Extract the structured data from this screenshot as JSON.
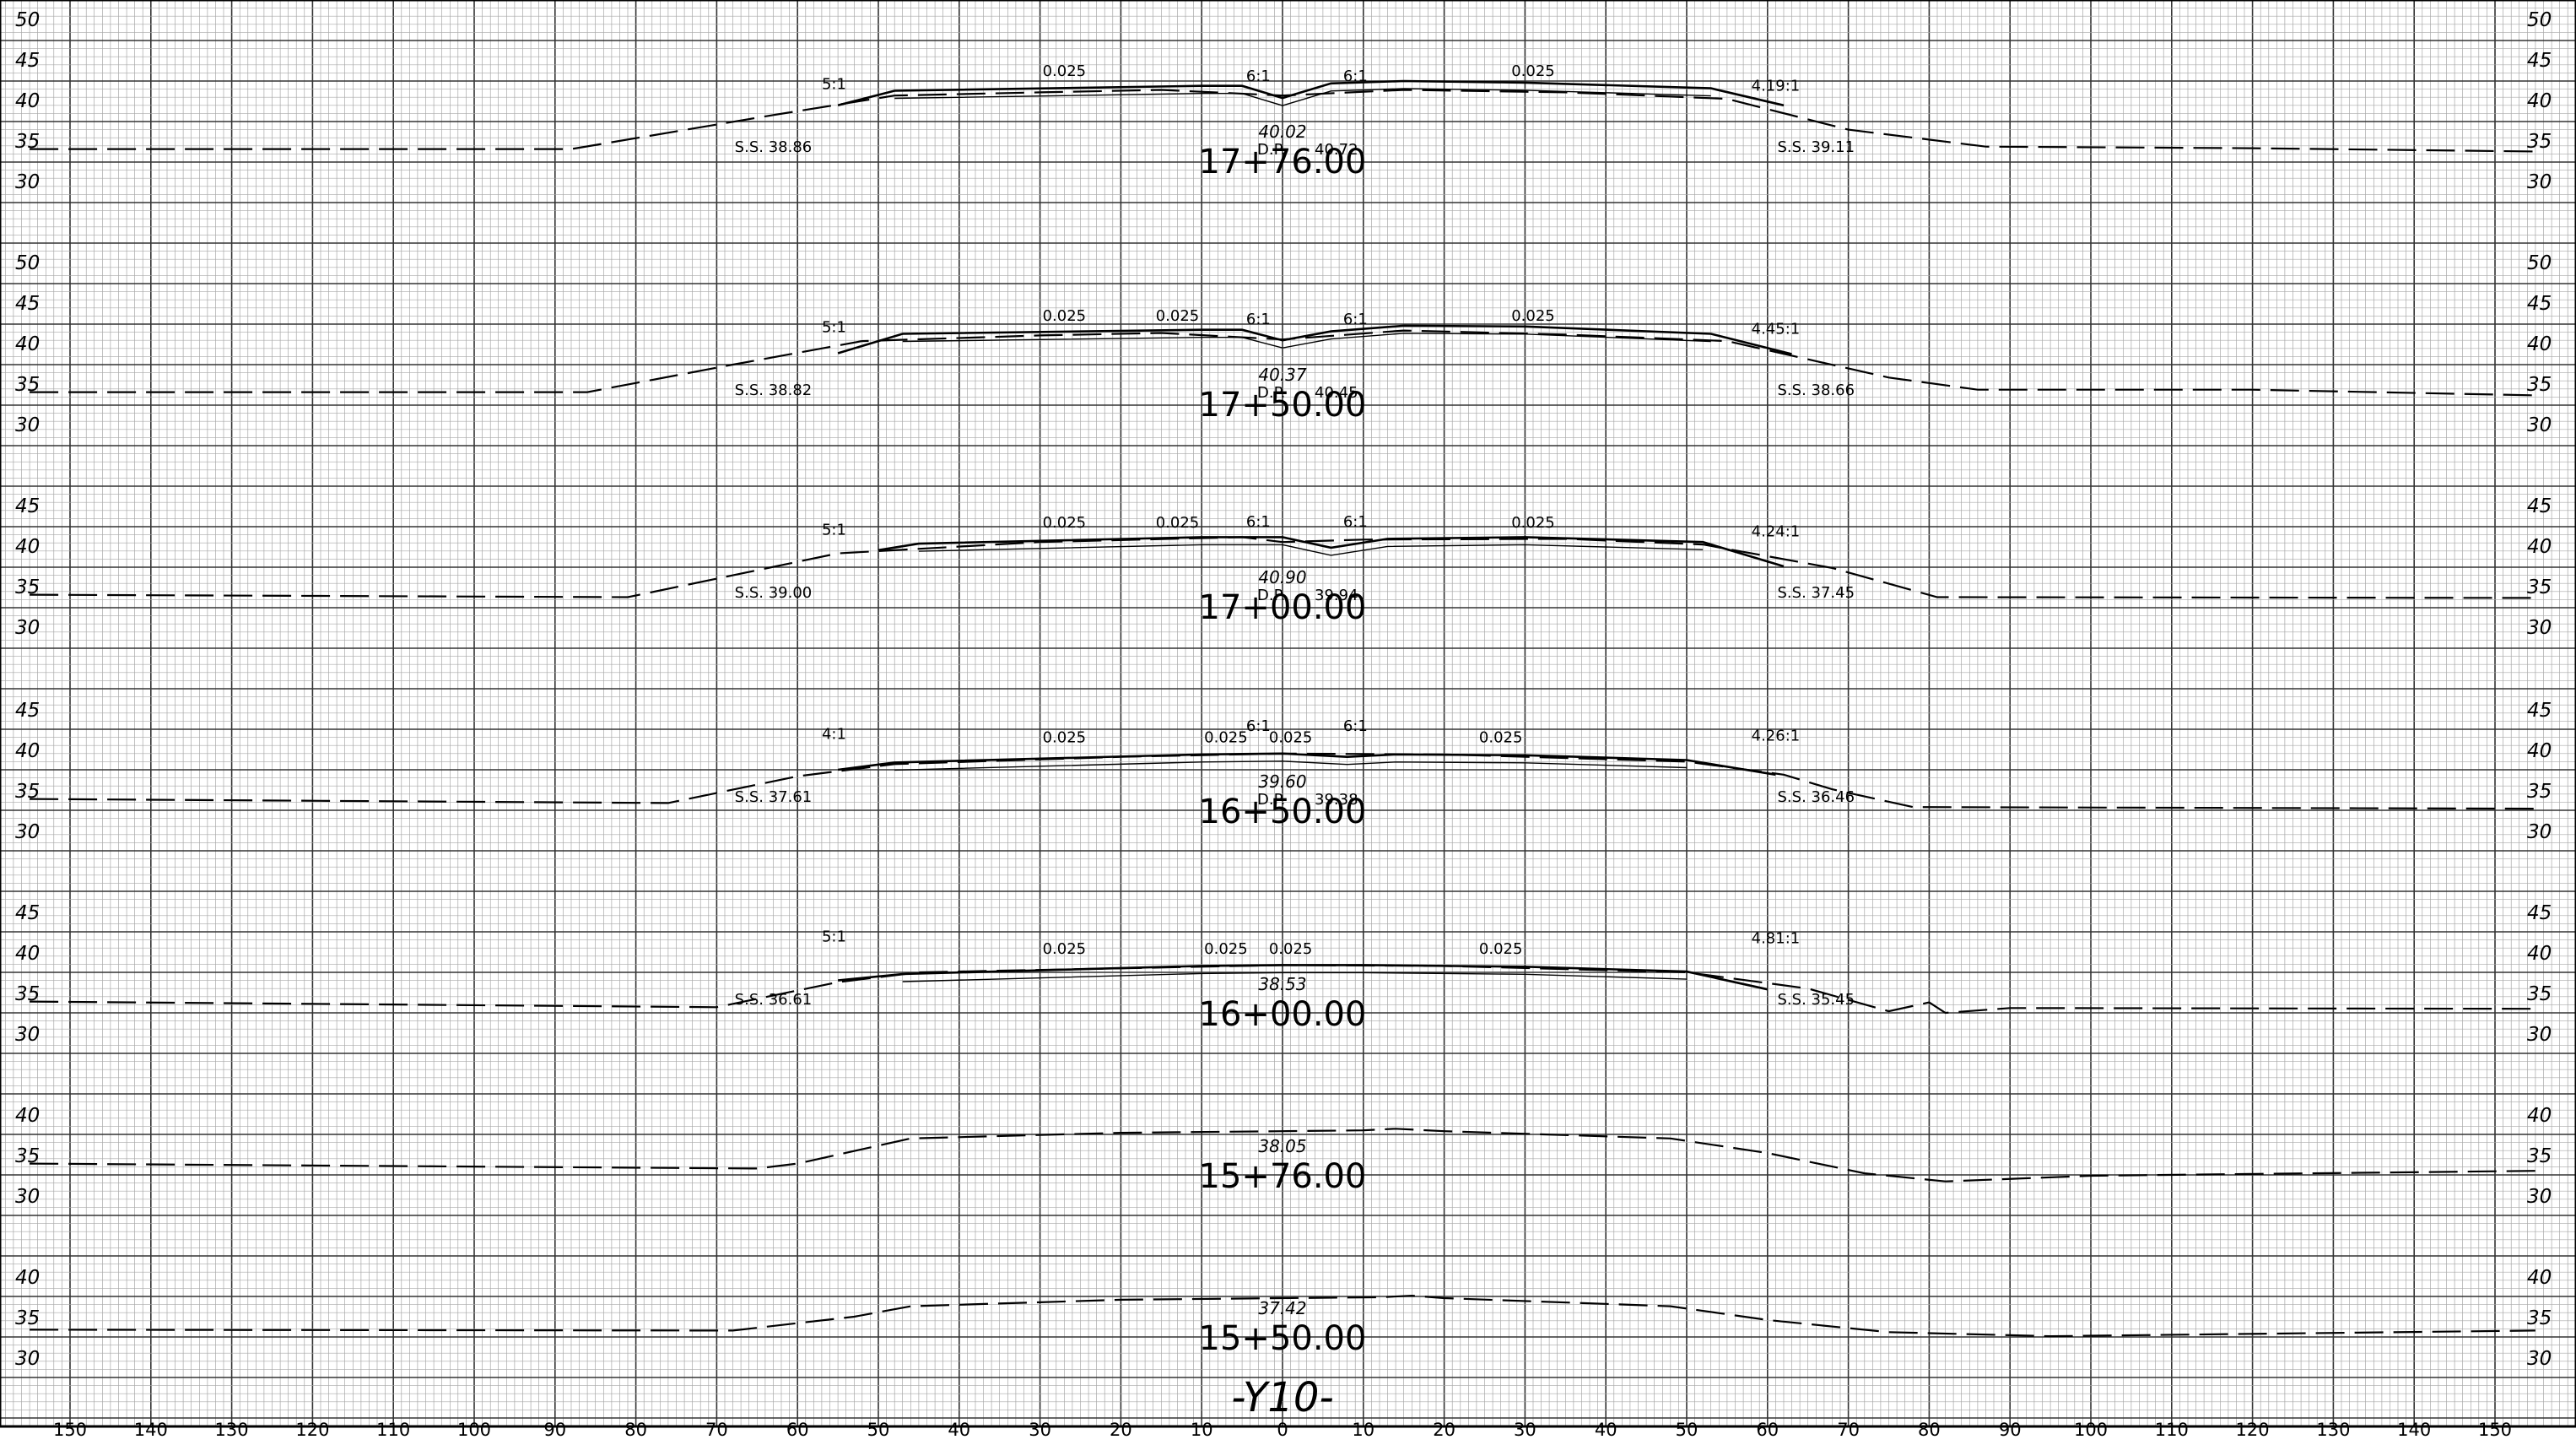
{
  "drawing": {
    "title": "-Y10-",
    "x_axis_ticks": [
      150,
      140,
      130,
      120,
      110,
      100,
      90,
      80,
      70,
      60,
      50,
      40,
      30,
      20,
      10,
      0,
      10,
      20,
      30,
      40,
      50,
      60,
      70,
      80,
      90,
      100,
      110,
      120,
      130,
      140,
      150
    ],
    "sections": [
      {
        "station": "17+76.00",
        "elev_labels": [
          "50",
          "45",
          "40",
          "35",
          "30"
        ],
        "centerline_elev": "40.02",
        "ditch_point": "D.P.",
        "ditch_point_elev": "40.72",
        "left_shoulder": "S.S. 38.86",
        "right_shoulder": "S.S. 39.11",
        "left_slope": "5:1",
        "right_slope": "4.19:1",
        "left_ditch_slope": "6:1",
        "right_ditch_slope": "6:1",
        "lane_slopes": [
          "0.025",
          "0.025"
        ],
        "ground_profile": [
          [
            -155,
            34
          ],
          [
            -88,
            34
          ],
          [
            -63,
            38.2
          ],
          [
            -48,
            40.6
          ],
          [
            -30,
            41
          ],
          [
            -15,
            41.3
          ],
          [
            0,
            40.6
          ],
          [
            15,
            41.3
          ],
          [
            35,
            41
          ],
          [
            55,
            40.2
          ],
          [
            70,
            36.4
          ],
          [
            87,
            34.3
          ],
          [
            120,
            34.1
          ],
          [
            155,
            33.7
          ]
        ],
        "road_profile": [
          [
            -55,
            39.4
          ],
          [
            -48,
            41.2
          ],
          [
            -10,
            41.8
          ],
          [
            -5,
            41.8
          ],
          [
            0,
            40.3
          ],
          [
            6,
            42.1
          ],
          [
            15,
            42.4
          ],
          [
            30,
            42.2
          ],
          [
            53,
            41.5
          ],
          [
            62,
            39.4
          ]
        ]
      },
      {
        "station": "17+50.00",
        "elev_labels": [
          "50",
          "45",
          "40",
          "35",
          "30"
        ],
        "centerline_elev": "40.37",
        "ditch_point": "D.P.",
        "ditch_point_elev": "40.45",
        "left_shoulder": "S.S. 38.82",
        "right_shoulder": "S.S. 38.66",
        "left_slope": "5:1",
        "right_slope": "4.45:1",
        "left_ditch_slope": "6:1",
        "right_ditch_slope": "6:1",
        "lane_slopes": [
          "0.025",
          "0.025",
          "0.025"
        ],
        "ground_profile": [
          [
            -155,
            34
          ],
          [
            -86,
            34
          ],
          [
            -68,
            37.4
          ],
          [
            -52,
            40.3
          ],
          [
            -30,
            41
          ],
          [
            -15,
            41.3
          ],
          [
            0,
            40.5
          ],
          [
            15,
            41.6
          ],
          [
            35,
            41.1
          ],
          [
            55,
            40.3
          ],
          [
            75,
            35.8
          ],
          [
            86,
            34.3
          ],
          [
            120,
            34.3
          ],
          [
            155,
            33.6
          ]
        ],
        "road_profile": [
          [
            -55,
            38.8
          ],
          [
            -47,
            41.2
          ],
          [
            -10,
            41.7
          ],
          [
            -5,
            41.7
          ],
          [
            0,
            40.4
          ],
          [
            6,
            41.5
          ],
          [
            15,
            42.2
          ],
          [
            30,
            42.1
          ],
          [
            53,
            41.2
          ],
          [
            63,
            38.7
          ]
        ]
      },
      {
        "station": "17+00.00",
        "elev_labels": [
          "45",
          "40",
          "35",
          "30"
        ],
        "centerline_elev": "40.90",
        "ditch_point": "D.P.",
        "ditch_point_elev": "39.94",
        "left_shoulder": "S.S. 39.00",
        "right_shoulder": "S.S. 37.45",
        "left_slope": "5:1",
        "right_slope": "4.24:1",
        "left_ditch_slope": "6:1",
        "right_ditch_slope": "6:1",
        "lane_slopes": [
          "0.025",
          "0.025",
          "0.025"
        ],
        "ground_profile": [
          [
            -155,
            34
          ],
          [
            -81,
            33.7
          ],
          [
            -68,
            36.4
          ],
          [
            -55,
            39.1
          ],
          [
            -30,
            40.5
          ],
          [
            -5,
            41.1
          ],
          [
            0,
            40.5
          ],
          [
            10,
            40.8
          ],
          [
            35,
            40.9
          ],
          [
            52,
            40.2
          ],
          [
            68,
            37.3
          ],
          [
            81,
            33.7
          ],
          [
            155,
            33.6
          ]
        ],
        "road_profile": [
          [
            -50,
            39.5
          ],
          [
            -45,
            40.3
          ],
          [
            -10,
            41.1
          ],
          [
            0,
            41.1
          ],
          [
            6,
            39.8
          ],
          [
            13,
            40.9
          ],
          [
            30,
            41.1
          ],
          [
            52,
            40.5
          ],
          [
            62,
            37.5
          ]
        ]
      },
      {
        "station": "16+50.00",
        "elev_labels": [
          "45",
          "40",
          "35",
          "30"
        ],
        "centerline_elev": "39.60",
        "ditch_point": "D.P.",
        "ditch_point_elev": "39.38",
        "left_shoulder": "S.S. 37.61",
        "right_shoulder": "S.S. 36.46",
        "left_slope": "4:1",
        "right_slope": "4.26:1",
        "left_ditch_slope": "6:1",
        "right_ditch_slope": "6:1",
        "lane_slopes": [
          "0.025",
          "0.025",
          "0.025",
          "0.025"
        ],
        "ground_profile": [
          [
            -155,
            34
          ],
          [
            -76,
            33.5
          ],
          [
            -60,
            36.8
          ],
          [
            -48,
            38.3
          ],
          [
            -20,
            39.2
          ],
          [
            0,
            39.6
          ],
          [
            20,
            39.5
          ],
          [
            50,
            38.6
          ],
          [
            62,
            37
          ],
          [
            68,
            35.2
          ],
          [
            78,
            33
          ],
          [
            155,
            32.8
          ]
        ],
        "road_profile": [
          [
            -55,
            37.6
          ],
          [
            -48,
            38.5
          ],
          [
            -10,
            39.5
          ],
          [
            0,
            39.6
          ],
          [
            8,
            39.2
          ],
          [
            14,
            39.5
          ],
          [
            30,
            39.4
          ],
          [
            50,
            38.8
          ],
          [
            61,
            37
          ]
        ]
      },
      {
        "station": "16+00.00",
        "elev_labels": [
          "45",
          "40",
          "35",
          "30"
        ],
        "centerline_elev": "38.53",
        "left_shoulder": "S.S. 36.61",
        "right_shoulder": "S.S. 35.45",
        "left_slope": "5:1",
        "right_slope": "4.81:1",
        "lane_slopes": [
          "0.025",
          "0.025",
          "0.025",
          "0.025"
        ],
        "ground_profile": [
          [
            -155,
            34
          ],
          [
            -70,
            33.3
          ],
          [
            -55,
            36.4
          ],
          [
            -45,
            37.6
          ],
          [
            -10,
            38.3
          ],
          [
            0,
            38.5
          ],
          [
            20,
            38.4
          ],
          [
            50,
            37.6
          ],
          [
            65,
            35.6
          ],
          [
            75,
            32.8
          ],
          [
            80,
            33.9
          ],
          [
            82,
            32.6
          ],
          [
            90,
            33.2
          ],
          [
            155,
            33.1
          ]
        ],
        "road_profile": [
          [
            -55,
            36.6
          ],
          [
            -47,
            37.4
          ],
          [
            -10,
            38.4
          ],
          [
            0,
            38.5
          ],
          [
            10,
            38.5
          ],
          [
            30,
            38.3
          ],
          [
            50,
            37.7
          ],
          [
            60,
            35.5
          ]
        ]
      },
      {
        "station": "15+76.00",
        "elev_labels": [
          "40",
          "35",
          "30"
        ],
        "centerline_elev": "38.05",
        "ground_profile": [
          [
            -155,
            34
          ],
          [
            -65,
            33.4
          ],
          [
            -60,
            34
          ],
          [
            -46,
            37.1
          ],
          [
            -20,
            37.8
          ],
          [
            0,
            38
          ],
          [
            10,
            38.1
          ],
          [
            14,
            38.3
          ],
          [
            20,
            38
          ],
          [
            48,
            37.1
          ],
          [
            60,
            35.3
          ],
          [
            72,
            32.8
          ],
          [
            82,
            31.8
          ],
          [
            100,
            32.5
          ],
          [
            155,
            33.1
          ]
        ]
      },
      {
        "station": "15+50.00",
        "elev_labels": [
          "40",
          "35",
          "30"
        ],
        "centerline_elev": "37.42",
        "ground_profile": [
          [
            -155,
            33.5
          ],
          [
            -68,
            33.4
          ],
          [
            -53,
            35.1
          ],
          [
            -46,
            36.4
          ],
          [
            -20,
            37.2
          ],
          [
            0,
            37.4
          ],
          [
            12,
            37.5
          ],
          [
            16,
            37.7
          ],
          [
            20,
            37.4
          ],
          [
            48,
            36.4
          ],
          [
            60,
            34.7
          ],
          [
            75,
            33.2
          ],
          [
            95,
            32.7
          ],
          [
            155,
            33.4
          ]
        ]
      }
    ]
  }
}
